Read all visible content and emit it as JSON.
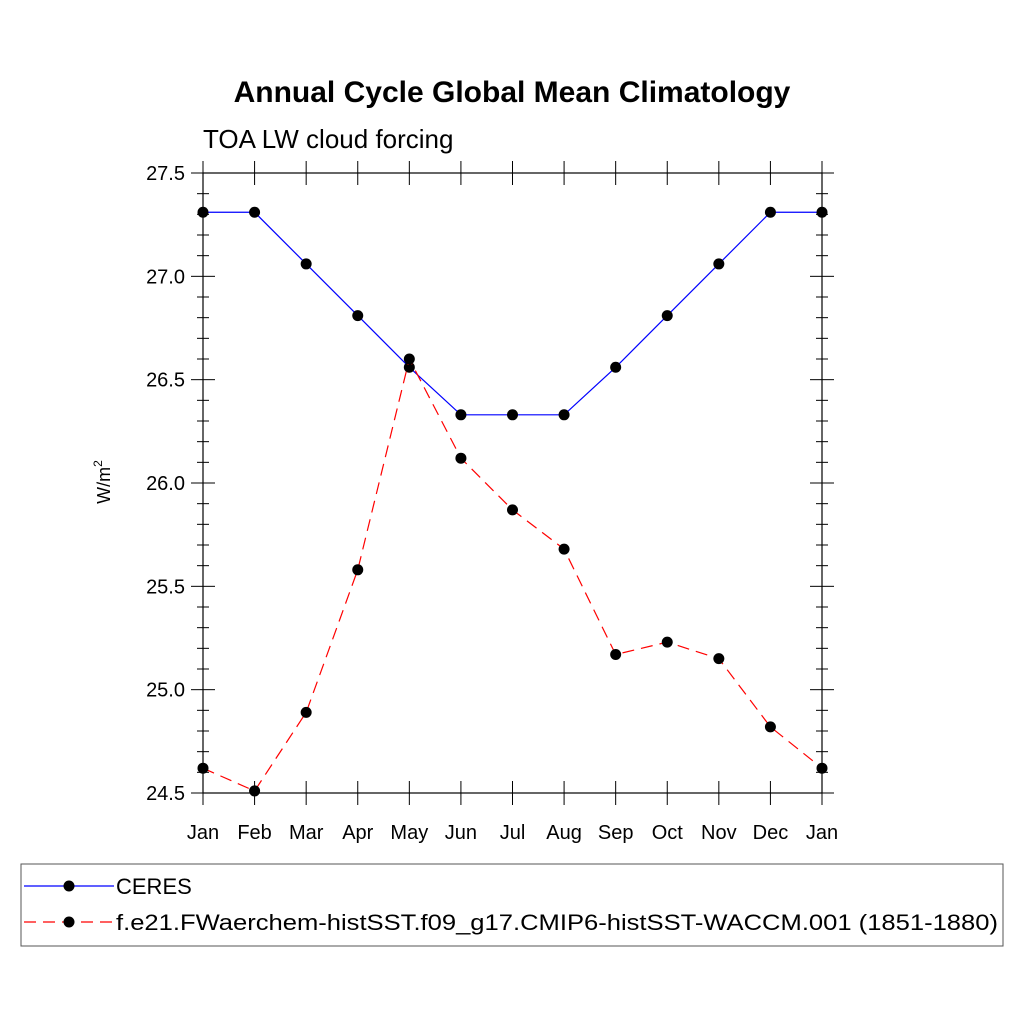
{
  "chart_data": {
    "type": "line",
    "title": "Annual Cycle Global Mean Climatology",
    "subtitle": "TOA LW cloud forcing",
    "ylabel": "W/m",
    "ylabel_sup": "2",
    "xlabel": "",
    "ylim": [
      24.5,
      27.5
    ],
    "yticks": [
      "24.5",
      "25.0",
      "25.5",
      "26.0",
      "26.5",
      "27.0",
      "27.5"
    ],
    "categories": [
      "Jan",
      "Feb",
      "Mar",
      "Apr",
      "May",
      "Jun",
      "Jul",
      "Aug",
      "Sep",
      "Oct",
      "Nov",
      "Dec",
      "Jan"
    ],
    "series": [
      {
        "name": "CERES",
        "color": "#0000ff",
        "dash": "solid",
        "values": [
          27.31,
          27.31,
          27.06,
          26.81,
          26.56,
          26.33,
          26.33,
          26.33,
          26.56,
          26.81,
          27.06,
          27.31,
          27.31
        ]
      },
      {
        "name": "f.e21.FWaerchem-histSST.f09_g17.CMIP6-histSST-WACCM.001 (1851-1880)",
        "color": "#ff0000",
        "dash": "dashed",
        "values": [
          24.62,
          24.51,
          24.89,
          25.58,
          26.6,
          26.12,
          25.87,
          25.68,
          25.17,
          25.23,
          25.15,
          24.82,
          24.62
        ]
      }
    ],
    "legend_position": "bottom"
  }
}
